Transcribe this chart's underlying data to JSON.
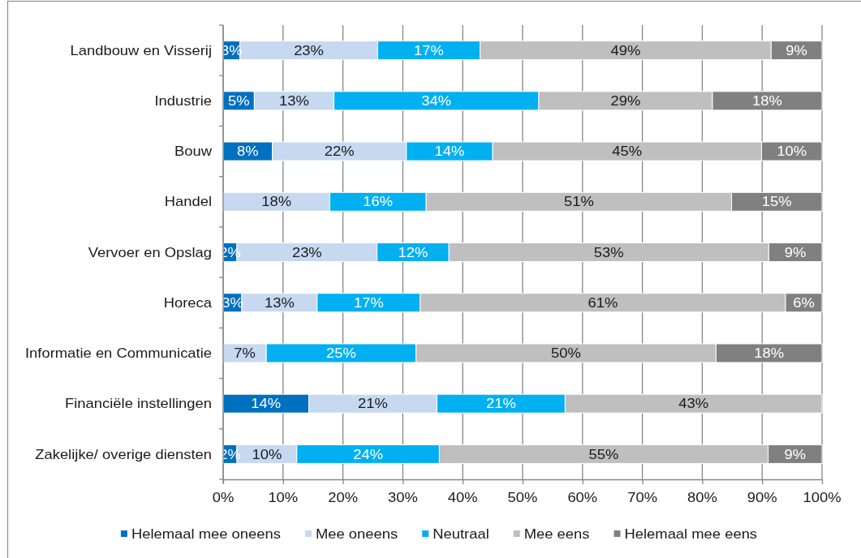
{
  "chart_data": {
    "type": "bar",
    "orientation": "horizontal",
    "stacked": true,
    "categories": [
      "Landbouw en Visserij",
      "Industrie",
      "Bouw",
      "Handel",
      "Vervoer en Opslag",
      "Horeca",
      "Informatie en Communicatie",
      "Financiële instellingen",
      "Zakelijke/ overige diensten"
    ],
    "series": [
      {
        "name": "Helemaal mee oneens",
        "color": "#0070c0",
        "values": [
          2.8,
          5.2,
          8.2,
          null,
          2.3,
          3.1,
          null,
          14.3,
          2.3
        ],
        "value_labels": [
          "3%",
          "5%",
          "8%",
          null,
          "2%",
          "3%",
          null,
          "14%",
          "2%"
        ]
      },
      {
        "name": "Mee oneens",
        "color": "#c6d9f1",
        "values": [
          23.0,
          13.3,
          22.4,
          17.8,
          23.4,
          12.6,
          7.2,
          21.4,
          10.0
        ],
        "value_labels": [
          "23%",
          "13%",
          "22%",
          "18%",
          "23%",
          "13%",
          "7%",
          "21%",
          "10%"
        ]
      },
      {
        "name": "Neutraal",
        "color": "#00b0f0",
        "values": [
          17.1,
          34.2,
          14.4,
          16.1,
          12.0,
          17.2,
          25.0,
          21.4,
          23.8
        ],
        "value_labels": [
          "17%",
          "34%",
          "14%",
          "16%",
          "12%",
          "17%",
          "25%",
          "21%",
          "24%"
        ]
      },
      {
        "name": "Mee eens",
        "color": "#bfbfbf",
        "values": [
          48.6,
          29.0,
          44.9,
          51.0,
          53.4,
          61.0,
          50.1,
          42.9,
          54.9
        ],
        "value_labels": [
          "49%",
          "29%",
          "45%",
          "51%",
          "53%",
          "61%",
          "50%",
          "43%",
          "55%"
        ]
      },
      {
        "name": "Helemaal mee eens",
        "color": "#808080",
        "values": [
          8.5,
          18.3,
          10.1,
          15.1,
          8.9,
          6.1,
          17.7,
          null,
          9.0
        ],
        "value_labels": [
          "9%",
          "18%",
          "10%",
          "15%",
          "9%",
          "6%",
          "18%",
          null,
          "9%"
        ]
      }
    ],
    "xlim": [
      0,
      100
    ],
    "xticks": [
      {
        "value": 0,
        "label": "0%"
      },
      {
        "value": 10,
        "label": "10%"
      },
      {
        "value": 20,
        "label": "20%"
      },
      {
        "value": 30,
        "label": "30%"
      },
      {
        "value": 40,
        "label": "40%"
      },
      {
        "value": 50,
        "label": "50%"
      },
      {
        "value": 60,
        "label": "60%"
      },
      {
        "value": 70,
        "label": "70%"
      },
      {
        "value": 80,
        "label": "80%"
      },
      {
        "value": 90,
        "label": "90%"
      },
      {
        "value": 100,
        "label": "100%"
      }
    ],
    "grid": "x",
    "legend": "bottom"
  }
}
